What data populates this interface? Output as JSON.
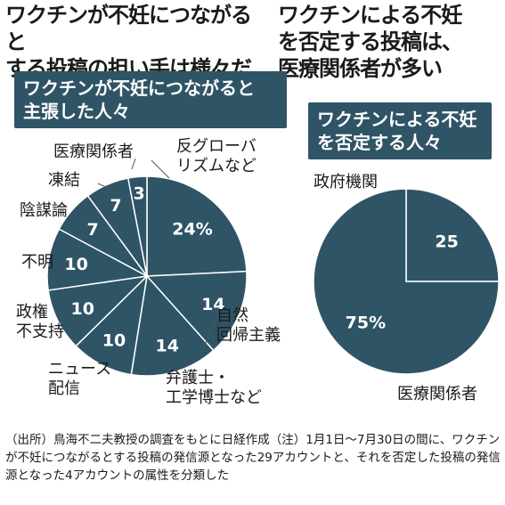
{
  "header_left": "ワクチンが不妊につながると\nする投稿の担い手は様々だ",
  "header_right": "ワクチンによる不妊\nを否定する投稿は、\n医療関係者が多い",
  "colors": {
    "fill": "#2f5466",
    "stroke": "#ffffff",
    "leader": "#555555"
  },
  "chart_data": [
    {
      "type": "pie",
      "title": "ワクチンが不妊につながると\n主張した人々",
      "slices": [
        {
          "label": "反グローバリズムなど",
          "value": 24,
          "value_label": "24%"
        },
        {
          "label": "自然回帰主義",
          "value": 14,
          "value_label": "14"
        },
        {
          "label": "弁護士・工学博士など",
          "value": 14,
          "value_label": "14"
        },
        {
          "label": "ニュース配信",
          "value": 10,
          "value_label": "10"
        },
        {
          "label": "政権不支持",
          "value": 10,
          "value_label": "10"
        },
        {
          "label": "不明",
          "value": 10,
          "value_label": "10"
        },
        {
          "label": "陰謀論",
          "value": 7,
          "value_label": "7"
        },
        {
          "label": "凍結",
          "value": 7,
          "value_label": "7"
        },
        {
          "label": "医療関係者",
          "value": 3,
          "value_label": "3"
        }
      ],
      "outer_labels": [
        {
          "text": "反グローバ\nリズムなど"
        },
        {
          "text": "自然\n回帰主義"
        },
        {
          "text": "弁護士・\n工学博士など"
        },
        {
          "text": "ニュース\n配信"
        },
        {
          "text": "政権\n不支持"
        },
        {
          "text": "不明"
        },
        {
          "text": "陰謀論"
        },
        {
          "text": "凍結"
        },
        {
          "text": "医療関係者"
        }
      ]
    },
    {
      "type": "pie",
      "title": "ワクチンによる不妊\nを否定する人々",
      "slices": [
        {
          "label": "政府機関",
          "value": 25,
          "value_label": "25"
        },
        {
          "label": "医療関係者",
          "value": 75,
          "value_label": "75%"
        }
      ],
      "outer_labels": [
        {
          "text": "政府機関"
        },
        {
          "text": "医療関係者"
        }
      ]
    }
  ],
  "footnote": "（出所）鳥海不二夫教授の調査をもとに日経作成（注）1月1日～7月30日の間に、ワクチンが不妊につながるとする投稿の発信源となった29アカウントと、それを否定した投稿の発信源となった4アカウントの属性を分類した"
}
